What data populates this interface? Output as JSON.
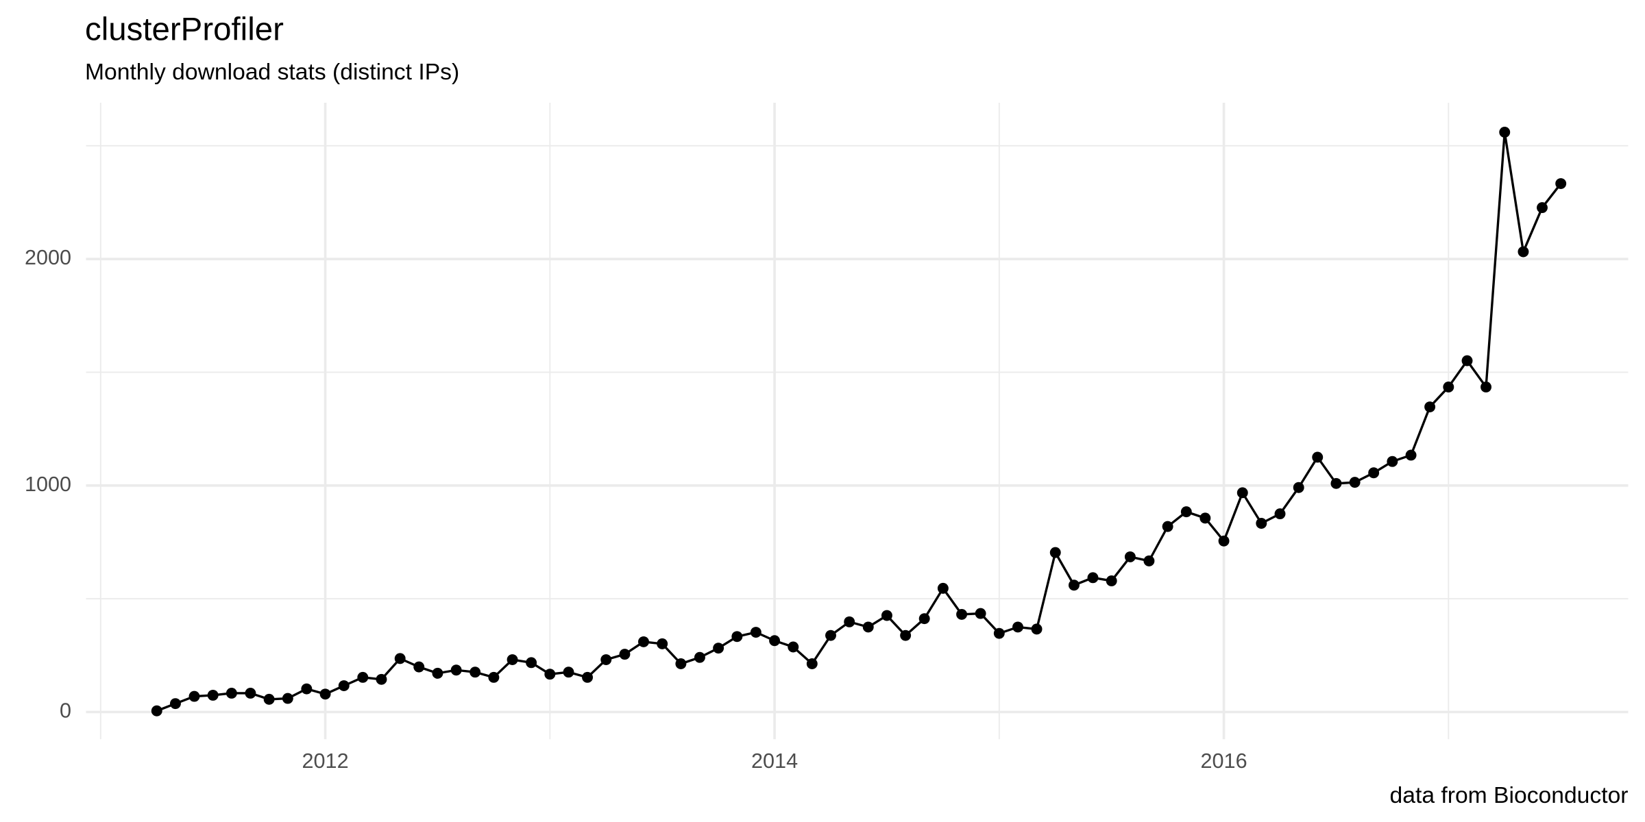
{
  "chart_data": {
    "type": "line",
    "title": "clusterProfiler",
    "subtitle": "Monthly download stats (distinct IPs)",
    "caption": "data from Bioconductor",
    "x": [
      2011.25,
      2011.333,
      2011.417,
      2011.5,
      2011.583,
      2011.667,
      2011.75,
      2011.833,
      2011.917,
      2012,
      2012.083,
      2012.167,
      2012.25,
      2012.333,
      2012.417,
      2012.5,
      2012.583,
      2012.667,
      2012.75,
      2012.833,
      2012.917,
      2013,
      2013.083,
      2013.167,
      2013.25,
      2013.333,
      2013.417,
      2013.5,
      2013.583,
      2013.667,
      2013.75,
      2013.833,
      2013.917,
      2014,
      2014.083,
      2014.167,
      2014.25,
      2014.333,
      2014.417,
      2014.5,
      2014.583,
      2014.667,
      2014.75,
      2014.833,
      2014.917,
      2015,
      2015.083,
      2015.167,
      2015.25,
      2015.333,
      2015.417,
      2015.5,
      2015.583,
      2015.667,
      2015.75,
      2015.833,
      2015.917,
      2016,
      2016.083,
      2016.167,
      2016.25,
      2016.333,
      2016.417,
      2016.5,
      2016.583,
      2016.667,
      2016.75,
      2016.833,
      2016.917,
      2017,
      2017.083,
      2017.167,
      2017.25,
      2017.333,
      2017.417,
      2017.5
    ],
    "values": [
      5,
      37,
      69,
      74,
      83,
      83,
      56,
      60,
      102,
      79,
      116,
      153,
      144,
      236,
      199,
      171,
      185,
      176,
      153,
      231,
      218,
      167,
      176,
      153,
      231,
      255,
      310,
      301,
      213,
      241,
      282,
      333,
      352,
      315,
      287,
      213,
      338,
      398,
      375,
      426,
      338,
      412,
      546,
      431,
      435,
      347,
      375,
      366,
      704,
      560,
      593,
      579,
      685,
      667,
      819,
      884,
      856,
      755,
      968,
      833,
      875,
      991,
      1125,
      1009,
      1014,
      1056,
      1106,
      1134,
      1347,
      1435,
      1551,
      1435,
      2560,
      2032,
      2227,
      2333
    ],
    "color": "#000000",
    "xlim": [
      2010.935,
      2017.8
    ],
    "ylim": [
      -120,
      2690
    ],
    "xticks": [
      2012,
      2014,
      2016
    ],
    "yticks": [
      0,
      1000,
      2000
    ],
    "xminor": [
      2011,
      2013,
      2015,
      2017
    ],
    "yminor": [
      500,
      1500,
      2500
    ],
    "grid": true
  }
}
